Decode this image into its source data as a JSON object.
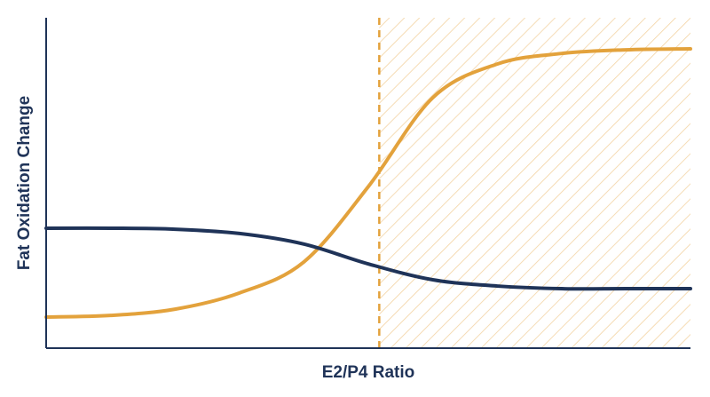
{
  "chart_data": {
    "type": "line",
    "xlabel": "E2/P4 Ratio",
    "ylabel": "Fat Oxidation Change",
    "x": [
      0,
      10,
      20,
      30,
      40,
      50,
      60,
      70,
      80,
      90,
      100
    ],
    "series": [
      {
        "color": "#e3a23c",
        "values": [
          9.4,
          9.9,
          11.8,
          16.7,
          26.1,
          48.9,
          75.8,
          86.0,
          89.2,
          90.3,
          90.6
        ]
      },
      {
        "color": "#1f3358",
        "values": [
          36.3,
          36.3,
          36.0,
          34.7,
          31.5,
          25.5,
          20.7,
          18.8,
          18.0,
          18.0,
          18.0
        ]
      }
    ],
    "xlim": [
      0,
      100
    ],
    "ylim": [
      0,
      100
    ],
    "threshold_x": 51.7,
    "threshold_color": "#e3a23c",
    "axis_color": "#1f3358"
  }
}
